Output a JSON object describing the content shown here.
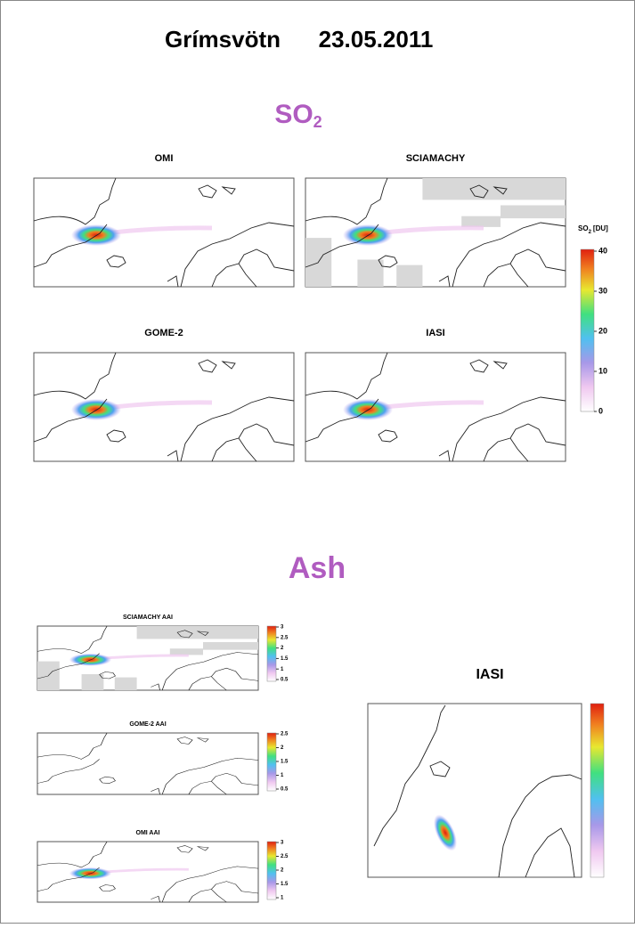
{
  "title": {
    "name": "Grímsvötn",
    "date": "23.05.2011"
  },
  "so2": {
    "heading": {
      "text": "SO",
      "subscript": "2"
    },
    "panels": [
      "OMI",
      "SCIAMACHY",
      "GOME-2",
      "IASI"
    ],
    "colorbar": {
      "label": {
        "text": "SO",
        "subscript": "2",
        "unit": "[DU]"
      },
      "ticks": [
        0,
        10,
        20,
        30,
        40
      ]
    }
  },
  "ash": {
    "heading": "Ash",
    "panels": [
      {
        "title": "SCIAMACHY AAI",
        "ticks": [
          0.5,
          1,
          1.5,
          2,
          2.5,
          3
        ]
      },
      {
        "title": "GOME-2 AAI",
        "ticks": [
          0.5,
          1,
          1.5,
          2,
          2.5
        ]
      },
      {
        "title": "OMI AAI",
        "ticks": [
          1,
          1.5,
          2,
          2.5,
          3
        ]
      }
    ],
    "iasi_title": "IASI"
  }
}
